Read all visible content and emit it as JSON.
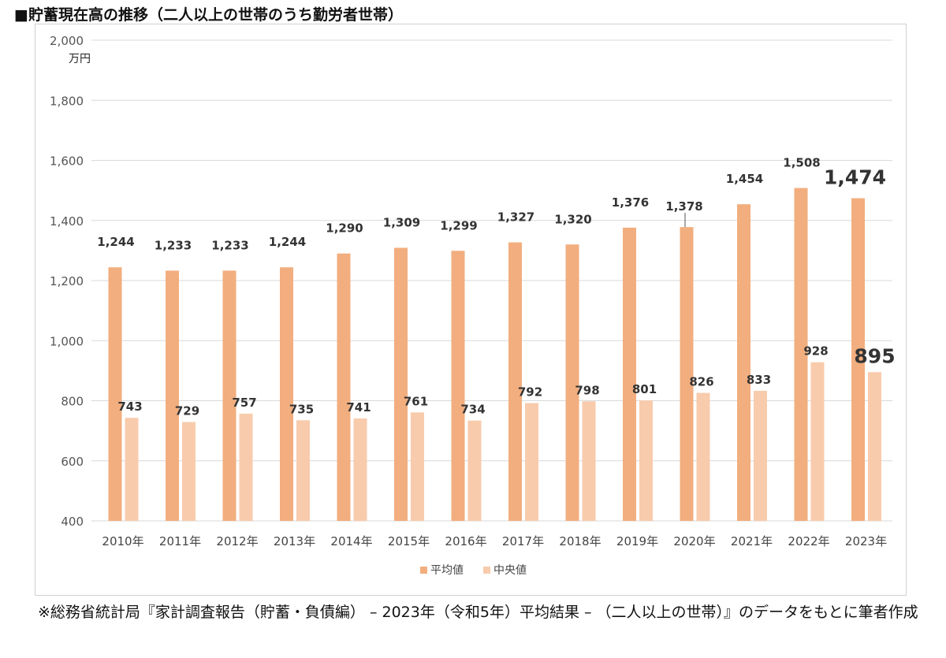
{
  "title": "■貯蓄現在高の推移（二人以上の世帯のうち勤労者世帯）",
  "note": "※総務省統計局『家計調査報告（貯蓄・負債編） – 2023年（令和5年）平均結果 – （二人以上の世帯）』のデータをもとに筆者作成",
  "chart_data": {
    "type": "bar",
    "ylabel": "万円",
    "ylim": [
      400,
      2000
    ],
    "yticks": [
      400,
      600,
      800,
      1000,
      1200,
      1400,
      1600,
      1800,
      2000
    ],
    "ytick_labels": [
      "400",
      "600",
      "800",
      "1,000",
      "1,200",
      "1,400",
      "1,600",
      "1,800",
      "2,000"
    ],
    "grid": true,
    "legend_position": "bottom",
    "categories": [
      "2010年",
      "2011年",
      "2012年",
      "2013年",
      "2014年",
      "2015年",
      "2016年",
      "2017年",
      "2018年",
      "2019年",
      "2020年",
      "2021年",
      "2022年",
      "2023年"
    ],
    "series": [
      {
        "name": "平均値",
        "color": "#f2ae7e",
        "values": [
          1244,
          1233,
          1233,
          1244,
          1290,
          1309,
          1299,
          1327,
          1320,
          1376,
          1378,
          1454,
          1508,
          1474
        ],
        "labels": [
          "1,244",
          "1,233",
          "1,233",
          "1,244",
          "1,290",
          "1,309",
          "1,299",
          "1,327",
          "1,320",
          "1,376",
          "1,378",
          "1,454",
          "1,508",
          "1,474"
        ]
      },
      {
        "name": "中央値",
        "color": "#f8cbac",
        "values": [
          743,
          729,
          757,
          735,
          741,
          761,
          734,
          792,
          798,
          801,
          826,
          833,
          928,
          895
        ],
        "labels": [
          "743",
          "729",
          "757",
          "735",
          "741",
          "761",
          "734",
          "792",
          "798",
          "801",
          "826",
          "833",
          "928",
          "895"
        ]
      }
    ]
  }
}
